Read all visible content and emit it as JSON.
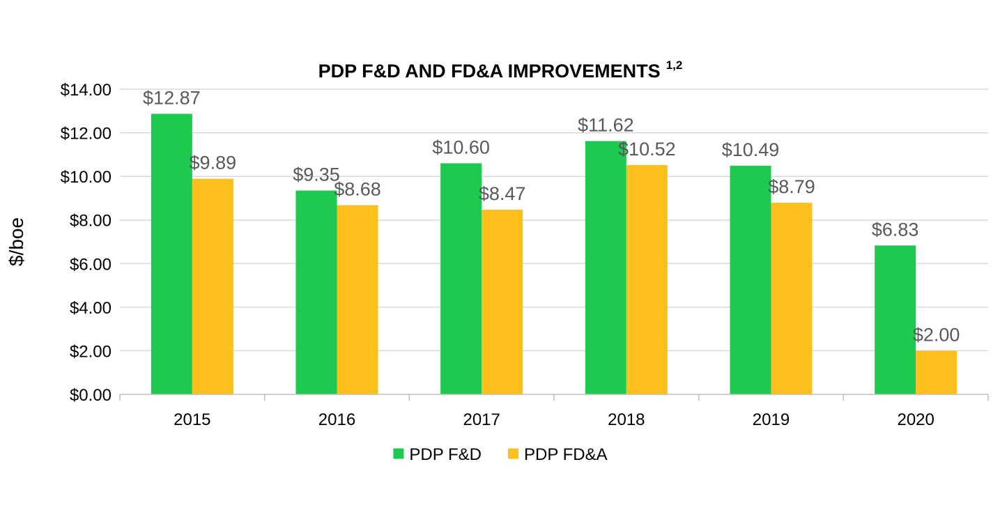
{
  "chart_data": {
    "type": "bar",
    "title": "PDP F&D AND FD&A IMPROVEMENTS",
    "title_superscript": "1,2",
    "xlabel": "",
    "ylabel": "$/boe",
    "categories": [
      "2015",
      "2016",
      "2017",
      "2018",
      "2019",
      "2020"
    ],
    "series": [
      {
        "name": "PDP F&D",
        "color": "#1DC94F",
        "values": [
          12.87,
          9.35,
          10.6,
          11.62,
          10.49,
          6.83
        ],
        "labels": [
          "$12.87",
          "$9.35",
          "$10.60",
          "$11.62",
          "$10.49",
          "$6.83"
        ]
      },
      {
        "name": "PDP FD&A",
        "color": "#FDBF1C",
        "values": [
          9.89,
          8.68,
          8.47,
          10.52,
          8.79,
          2.0
        ],
        "labels": [
          "$9.89",
          "$8.68",
          "$8.47",
          "$10.52",
          "$8.79",
          "$2.00"
        ]
      }
    ],
    "ylim": [
      0,
      14
    ],
    "yticks": [
      0,
      2,
      4,
      6,
      8,
      10,
      12,
      14
    ],
    "ytick_labels": [
      "$0.00",
      "$2.00",
      "$4.00",
      "$6.00",
      "$8.00",
      "$10.00",
      "$12.00",
      "$14.00"
    ],
    "grid": true,
    "legend_position": "bottom-center",
    "gridline_color": "#D9D9D9",
    "axis_color": "#BFBFBF",
    "label_color": "#595959"
  }
}
